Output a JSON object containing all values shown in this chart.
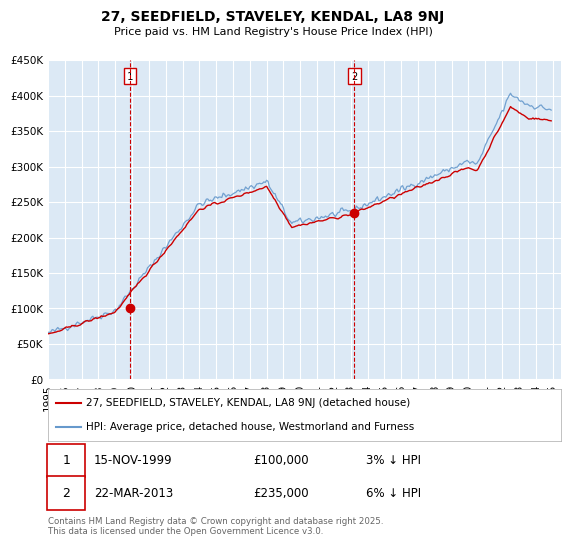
{
  "title": "27, SEEDFIELD, STAVELEY, KENDAL, LA8 9NJ",
  "subtitle": "Price paid vs. HM Land Registry's House Price Index (HPI)",
  "ylim": [
    0,
    450000
  ],
  "yticks": [
    0,
    50000,
    100000,
    150000,
    200000,
    250000,
    300000,
    350000,
    400000,
    450000
  ],
  "ytick_labels": [
    "£0",
    "£50K",
    "£100K",
    "£150K",
    "£200K",
    "£250K",
    "£300K",
    "£350K",
    "£400K",
    "£450K"
  ],
  "xlim_start": 1995.0,
  "xlim_end": 2025.5,
  "background_color": "#ffffff",
  "plot_bg_color": "#dce9f5",
  "grid_color": "#ffffff",
  "highlight_color": "#cde0f0",
  "line_color_property": "#cc0000",
  "line_color_hpi": "#6699cc",
  "transaction1_price": 100000,
  "transaction1_year": 1999.87,
  "transaction1_label": "1",
  "transaction2_price": 235000,
  "transaction2_year": 2013.22,
  "transaction2_label": "2",
  "legend_property": "27, SEEDFIELD, STAVELEY, KENDAL, LA8 9NJ (detached house)",
  "legend_hpi": "HPI: Average price, detached house, Westmorland and Furness",
  "annotation1": [
    "1",
    "15-NOV-1999",
    "£100,000",
    "3% ↓ HPI"
  ],
  "annotation2": [
    "2",
    "22-MAR-2013",
    "£235,000",
    "6% ↓ HPI"
  ],
  "footer": "Contains HM Land Registry data © Crown copyright and database right 2025.\nThis data is licensed under the Open Government Licence v3.0.",
  "xtick_years": [
    1995,
    1996,
    1997,
    1998,
    1999,
    2000,
    2001,
    2002,
    2003,
    2004,
    2005,
    2006,
    2007,
    2008,
    2009,
    2010,
    2011,
    2012,
    2013,
    2014,
    2015,
    2016,
    2017,
    2018,
    2019,
    2020,
    2021,
    2022,
    2023,
    2024,
    2025
  ]
}
